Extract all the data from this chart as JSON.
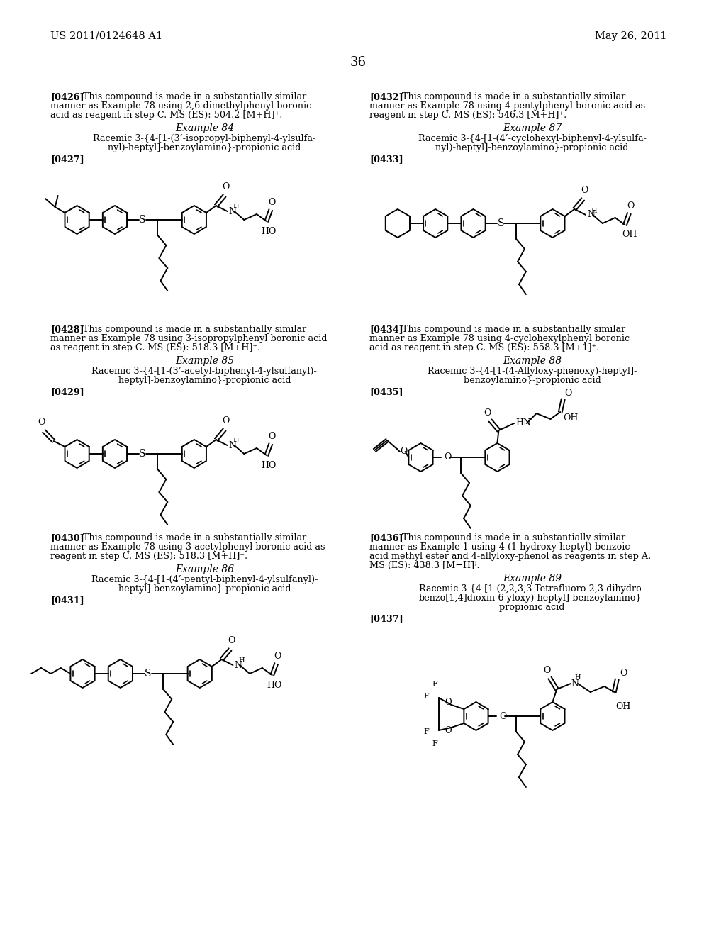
{
  "page_header_left": "US 2011/0124648 A1",
  "page_header_right": "May 26, 2011",
  "page_number": "36",
  "bg": "#ffffff",
  "fg": "#000000"
}
